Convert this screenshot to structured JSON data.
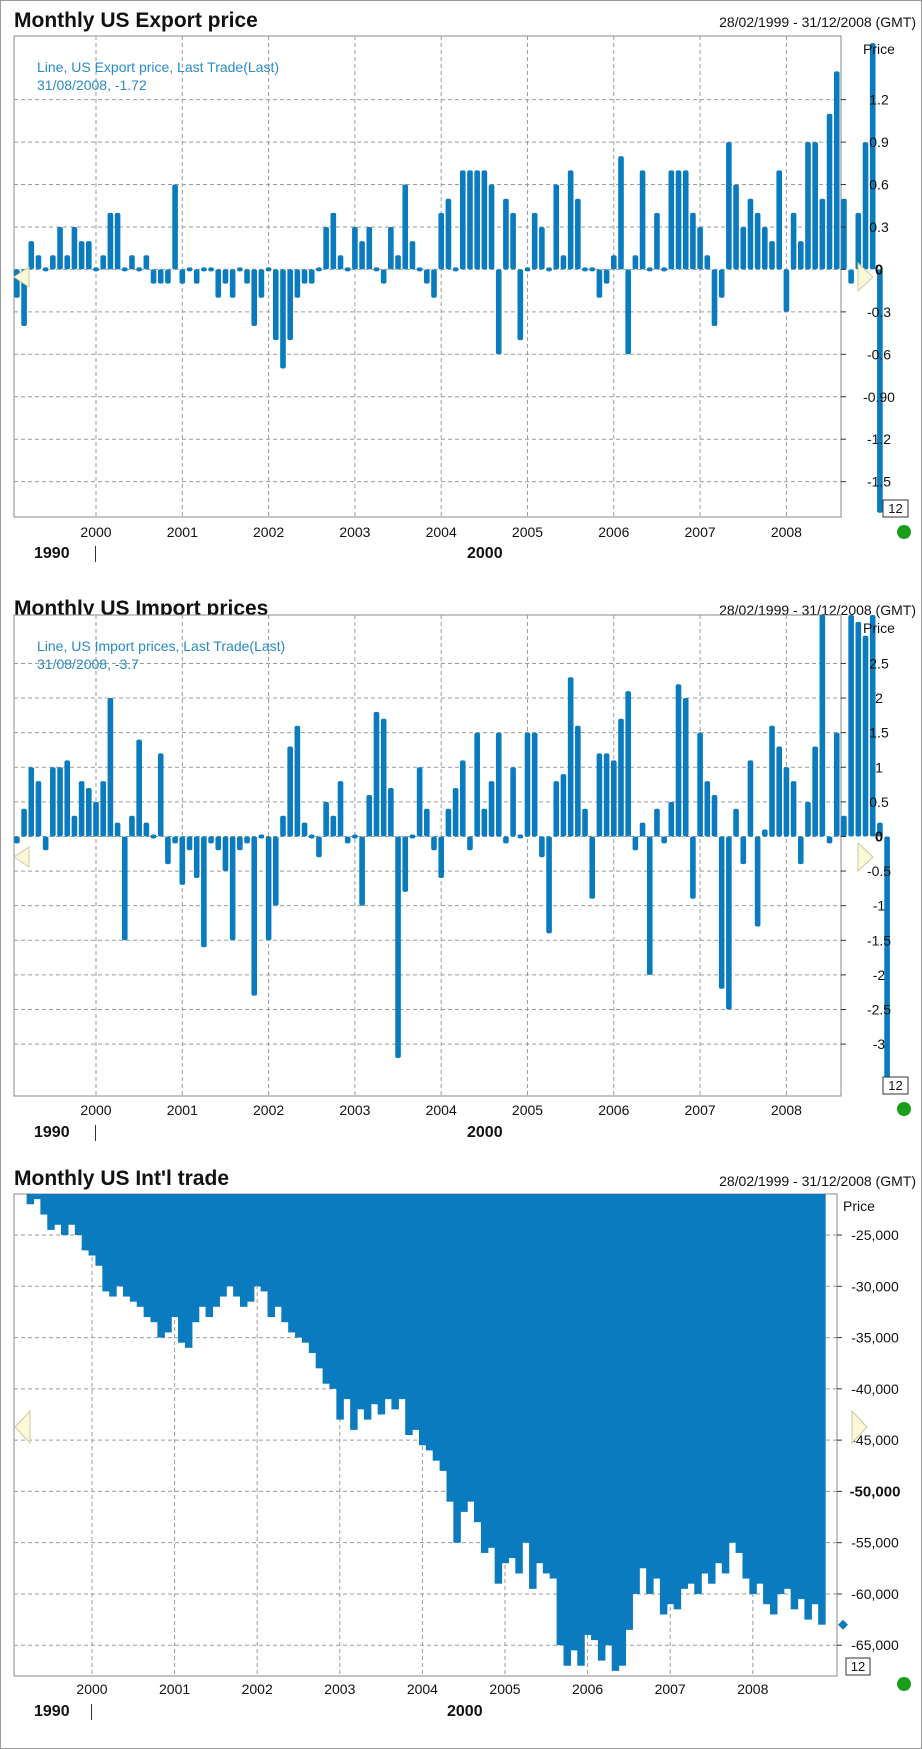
{
  "charts": [
    {
      "title": "Monthly US Export price",
      "date_range": "28/02/1999 - 31/12/2008 (GMT)",
      "legend_line1": "Line, US Export price, Last Trade(Last)",
      "legend_line2": "31/08/2008, -1.72",
      "era_left": "1990",
      "era_right": "2000",
      "scale_badge": "12",
      "status_color": "#1a9e1a",
      "bar_color": "#0a7bbf"
    },
    {
      "title": "Monthly US Import prices",
      "date_range": "28/02/1999 - 31/12/2008 (GMT)",
      "legend_line1": "Line, US Import prices, Last Trade(Last)",
      "legend_line2": "31/08/2008, -3.7",
      "era_left": "1990",
      "era_right": "2000",
      "scale_badge": "12",
      "status_color": "#1a9e1a",
      "bar_color": "#0a7bbf"
    },
    {
      "title": "Monthly US Int'l trade",
      "date_range": "28/02/1999 - 31/12/2008 (GMT)",
      "legend_line1": "",
      "legend_line2": "",
      "era_left": "1990",
      "era_right": "2000",
      "scale_badge": "12",
      "status_color": "#1a9e1a",
      "bar_color": "#0a7bbf"
    }
  ],
  "chart_data": [
    {
      "type": "bar",
      "title": "Monthly US Export price",
      "ylabel": "Price",
      "x_start": "1999-02",
      "interval": "monthly",
      "x_ticks": [
        "2000",
        "2001",
        "2002",
        "2003",
        "2004",
        "2005",
        "2006",
        "2007",
        "2008"
      ],
      "y_ticks": [
        1.2,
        0.9,
        0.6,
        0.3,
        0,
        -0.3,
        -0.6,
        -0.9,
        -1.2,
        -1.5
      ],
      "y_tick_labels": [
        "1.2",
        "0.9",
        "0.6",
        "0.3",
        "0",
        "-0.3",
        "-0.6",
        "-0.90",
        "-1.2",
        "-1.5"
      ],
      "emphasized_tick": "0",
      "ylim": [
        -1.75,
        1.65
      ],
      "grid": true,
      "values": [
        -0.2,
        -0.4,
        0.2,
        0.1,
        0,
        0.1,
        0.3,
        0.1,
        0.3,
        0.2,
        0.2,
        0,
        0.1,
        0.4,
        0.4,
        0,
        0.1,
        0,
        0.1,
        -0.1,
        -0.1,
        -0.1,
        0.6,
        -0.1,
        0,
        -0.1,
        0,
        0,
        -0.2,
        -0.1,
        -0.2,
        0,
        -0.1,
        -0.4,
        -0.2,
        0,
        -0.5,
        -0.7,
        -0.5,
        -0.2,
        -0.1,
        -0.1,
        0,
        0.3,
        0.4,
        0.1,
        0,
        0.3,
        0.2,
        0.3,
        0,
        -0.1,
        0.3,
        0.1,
        0.6,
        0.2,
        0,
        -0.1,
        -0.2,
        0.4,
        0.5,
        0,
        0.7,
        0.7,
        0.7,
        0.7,
        0.6,
        -0.6,
        0.5,
        0.4,
        -0.5,
        0,
        0.4,
        0.3,
        0,
        0.6,
        0.1,
        0.7,
        0.5,
        0,
        0,
        -0.2,
        -0.1,
        0.1,
        0.8,
        -0.6,
        0.1,
        0.7,
        0,
        0.4,
        0,
        0.7,
        0.7,
        0.7,
        0.4,
        0.3,
        0.1,
        -0.4,
        -0.2,
        0.9,
        0.6,
        0.3,
        0.5,
        0.4,
        0.3,
        0.2,
        0.7,
        -0.3,
        0.4,
        0.2,
        0.9,
        0.9,
        0.5,
        1.1,
        1.4,
        0.5,
        -0.1,
        0.4,
        0.9,
        1.6,
        -1.72
      ]
    },
    {
      "type": "bar",
      "title": "Monthly US Import prices",
      "ylabel": "Price",
      "x_start": "1999-02",
      "interval": "monthly",
      "x_ticks": [
        "2000",
        "2001",
        "2002",
        "2003",
        "2004",
        "2005",
        "2006",
        "2007",
        "2008"
      ],
      "y_ticks": [
        2.5,
        2,
        1.5,
        1,
        0.5,
        0,
        -0.5,
        -1,
        -1.5,
        -2,
        -2.5,
        -3
      ],
      "y_tick_labels": [
        "2.5",
        "2",
        "1.5",
        "1",
        "0.5",
        "0",
        "-0.5",
        "-1",
        "-1.5",
        "-2",
        "-2.5",
        "-3"
      ],
      "emphasized_tick": "0",
      "ylim": [
        -3.75,
        3.2
      ],
      "grid": true,
      "values": [
        -0.1,
        0.4,
        1,
        0.8,
        -0.2,
        1,
        1,
        1.1,
        0.3,
        0.8,
        0.7,
        0.5,
        0.8,
        2,
        0.2,
        -1.5,
        0.3,
        1.4,
        0.2,
        0,
        1.2,
        -0.4,
        -0.1,
        -0.7,
        -0.2,
        -0.6,
        -1.6,
        -0.1,
        -0.2,
        -0.5,
        -1.5,
        -0.2,
        -0.1,
        -2.3,
        0,
        -1.5,
        -1,
        0.3,
        1.3,
        1.6,
        0.2,
        0,
        -0.3,
        0.5,
        0.3,
        0.8,
        -0.1,
        0,
        -1,
        0.6,
        1.8,
        1.7,
        0.7,
        -3.2,
        -0.8,
        0,
        1,
        0.4,
        -0.2,
        -0.6,
        0.4,
        0.7,
        1.1,
        -0.2,
        1.5,
        0.4,
        0.8,
        1.5,
        -0.1,
        1,
        0,
        1.5,
        1.5,
        -0.3,
        -1.4,
        0.8,
        0.9,
        2.3,
        1.6,
        0.4,
        -0.9,
        1.2,
        1.2,
        1.1,
        1.7,
        2.1,
        -0.2,
        0.2,
        -2,
        0.4,
        -0.1,
        0.5,
        2.2,
        2,
        -0.9,
        1.5,
        0.8,
        0.6,
        -2.2,
        -2.5,
        0.4,
        -0.4,
        1.1,
        -1.3,
        0.1,
        1.6,
        1.3,
        1,
        0.8,
        -0.4,
        0.5,
        1.3,
        3.2,
        -0.1,
        1.5,
        0.3,
        3.2,
        3.1,
        2.9,
        3.2,
        0.2,
        -3.7
      ]
    },
    {
      "type": "bar",
      "title": "Monthly US Int'l trade",
      "ylabel": "Price",
      "x_start": "1999-02",
      "interval": "monthly",
      "x_ticks": [
        "2000",
        "2001",
        "2002",
        "2003",
        "2004",
        "2005",
        "2006",
        "2007",
        "2008"
      ],
      "y_ticks": [
        -25000,
        -30000,
        -35000,
        -40000,
        -45000,
        -50000,
        -55000,
        -60000,
        -65000
      ],
      "y_tick_labels": [
        "-25,000",
        "-30,000",
        "-35,000",
        "-40,000",
        "-45,000",
        "-50,000",
        "-55,000",
        "-60,000",
        "-65,000"
      ],
      "emphasized_tick": "-50,000",
      "ylim": [
        -68000,
        -21000
      ],
      "bar_base": -21000,
      "last_value_marker": -63000,
      "grid": true,
      "values": [
        -21000,
        -21000,
        -22000,
        -21500,
        -23000,
        -24500,
        -24000,
        -25000,
        -24000,
        -25000,
        -26500,
        -27000,
        -28000,
        -30500,
        -31000,
        -30000,
        -31000,
        -31500,
        -32000,
        -33000,
        -33500,
        -35000,
        -34500,
        -33000,
        -35500,
        -36000,
        -33500,
        -32000,
        -33000,
        -32000,
        -31000,
        -30000,
        -31000,
        -32000,
        -31500,
        -30000,
        -30500,
        -33000,
        -32000,
        -33500,
        -34500,
        -35000,
        -35500,
        -36500,
        -38000,
        -39500,
        -40000,
        -43000,
        -41000,
        -44000,
        -42000,
        -43000,
        -41500,
        -42500,
        -41000,
        -42000,
        -41000,
        -44500,
        -44000,
        -45500,
        -46000,
        -47000,
        -48000,
        -51000,
        -55000,
        -52000,
        -51000,
        -53000,
        -56000,
        -55500,
        -59000,
        -57000,
        -56500,
        -58000,
        -55000,
        -59500,
        -57000,
        -58000,
        -58500,
        -65000,
        -67000,
        -65500,
        -67000,
        -64000,
        -64500,
        -66500,
        -65000,
        -67500,
        -67000,
        -63500,
        -60000,
        -57500,
        -60000,
        -58500,
        -62000,
        -61000,
        -61500,
        -59500,
        -59000,
        -60000,
        -58000,
        -59000,
        -57000,
        -58000,
        -55000,
        -56000,
        -58500,
        -60000,
        -59000,
        -61000,
        -62000,
        -60000,
        -59500,
        -61500,
        -60500,
        -62500,
        -61000,
        -63000
      ]
    }
  ]
}
